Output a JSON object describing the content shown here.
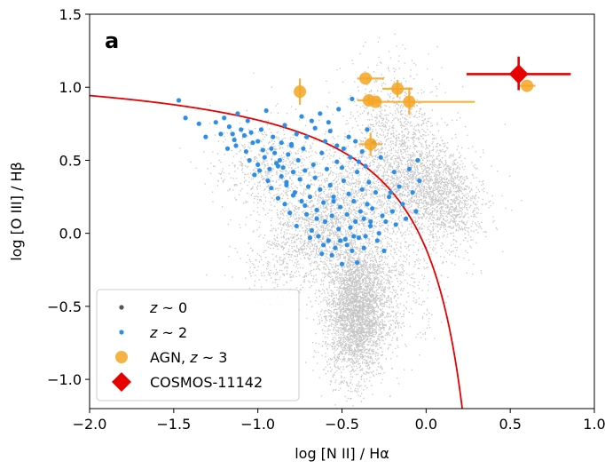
{
  "chart_data": {
    "type": "scatter",
    "panel_label": "a",
    "xlabel": "log [N II] / Hα",
    "ylabel": "log [O III] / Hβ",
    "xlim": [
      -2.0,
      1.0
    ],
    "ylim": [
      -1.2,
      1.5
    ],
    "xticks": [
      "−2.0",
      "−1.5",
      "−1.0",
      "−0.5",
      "0.0",
      "0.5",
      "1.0"
    ],
    "xtick_values": [
      -2.0,
      -1.5,
      -1.0,
      -0.5,
      0.0,
      0.5,
      1.0
    ],
    "yticks": [
      "−1.0",
      "−0.5",
      "0.0",
      "0.5",
      "1.0",
      "1.5"
    ],
    "ytick_values": [
      -1.0,
      -0.5,
      0.0,
      0.5,
      1.0,
      1.5
    ],
    "legend_position": "lower-left",
    "legend": [
      {
        "label": "z ~ 0",
        "italic_prefix": "z",
        "suffix": " ~ 0",
        "marker": "small-dot",
        "color": "#555555"
      },
      {
        "label": "z ~ 2",
        "italic_prefix": "z",
        "suffix": " ~ 2",
        "marker": "dot",
        "color": "#2b8fe8"
      },
      {
        "label": "AGN, z ~ 3",
        "prefix": "AGN, ",
        "italic_prefix": "z",
        "suffix": " ~ 3",
        "marker": "circle",
        "color": "#f5a623"
      },
      {
        "label": "COSMOS-11142",
        "marker": "diamond",
        "color": "#e60000"
      }
    ],
    "demarcation_curve": {
      "formula": "0.61/(x-0.47)+1.19",
      "color": "#e60000"
    },
    "series": [
      {
        "name": "z ~ 0",
        "color": "#333333",
        "description_of_density": "dense gray 2D histogram of local galaxies",
        "clouds": [
          {
            "x": -0.42,
            "y": -0.55,
            "sx": 0.09,
            "sy": 0.22,
            "n": 3200,
            "rot": 0.0
          },
          {
            "x": -0.62,
            "y": 0.05,
            "sx": 0.14,
            "sy": 0.26,
            "n": 1800,
            "rot": -0.7
          },
          {
            "x": -0.9,
            "y": 0.45,
            "sx": 0.18,
            "sy": 0.16,
            "n": 700,
            "rot": -0.5
          },
          {
            "x": -0.1,
            "y": 0.35,
            "sx": 0.17,
            "sy": 0.22,
            "n": 1600,
            "rot": 0.6
          },
          {
            "x": 0.1,
            "y": 0.25,
            "sx": 0.1,
            "sy": 0.18,
            "n": 900,
            "rot": 0.3
          },
          {
            "x": -0.2,
            "y": 0.8,
            "sx": 0.15,
            "sy": 0.2,
            "n": 500,
            "rot": 0.2
          },
          {
            "x": -0.3,
            "y": -0.3,
            "sx": 0.15,
            "sy": 0.2,
            "n": 800,
            "rot": 0.4
          }
        ]
      },
      {
        "name": "z ~ 2",
        "color": "#2b8fe8",
        "x": [
          -1.47,
          -1.43,
          -1.35,
          -1.31,
          -1.25,
          -1.22,
          -1.2,
          -1.17,
          -1.14,
          -1.13,
          -1.1,
          -1.08,
          -1.07,
          -1.05,
          -1.03,
          -1.02,
          -1.0,
          -0.99,
          -0.97,
          -0.96,
          -0.94,
          -0.93,
          -0.92,
          -0.9,
          -0.89,
          -0.88,
          -0.87,
          -0.86,
          -0.85,
          -0.84,
          -0.83,
          -0.82,
          -0.81,
          -0.8,
          -0.79,
          -0.78,
          -0.77,
          -0.76,
          -0.75,
          -0.74,
          -0.73,
          -0.72,
          -0.71,
          -0.7,
          -0.69,
          -0.68,
          -0.67,
          -0.66,
          -0.65,
          -0.64,
          -0.63,
          -0.62,
          -0.61,
          -0.6,
          -0.59,
          -0.58,
          -0.57,
          -0.56,
          -0.55,
          -0.54,
          -0.53,
          -0.52,
          -0.51,
          -0.5,
          -0.49,
          -0.48,
          -0.47,
          -0.46,
          -0.45,
          -0.44,
          -0.43,
          -0.42,
          -0.41,
          -0.4,
          -0.39,
          -0.38,
          -0.37,
          -0.36,
          -0.35,
          -0.34,
          -0.33,
          -0.32,
          -0.3,
          -0.28,
          -0.26,
          -0.24,
          -0.22,
          -0.2,
          -0.19,
          -0.18,
          -0.16,
          -0.14,
          -0.12,
          -0.1,
          -0.08,
          -0.06,
          -0.05,
          -0.04,
          -1.12,
          -1.06,
          -0.98,
          -0.91,
          -0.95,
          -0.84,
          -0.77,
          -0.71,
          -0.66,
          -0.6,
          -0.57,
          -0.53,
          -0.49,
          -0.46,
          -0.42,
          -0.38,
          -0.35,
          -0.31,
          -0.27,
          -0.44,
          -0.52,
          -0.58,
          -0.63,
          -0.68,
          -0.74,
          -0.8,
          -0.86,
          -0.92,
          -1.0,
          -1.04,
          -1.15,
          -1.18,
          -0.72,
          -0.65,
          -0.55,
          -0.5,
          -0.45,
          -0.4,
          -0.36,
          -0.33,
          -0.29,
          -0.25,
          -0.21,
          -0.62,
          -0.79,
          -0.83,
          -0.88,
          -0.69,
          -0.61,
          -0.56,
          -0.51,
          -0.47,
          -0.43,
          -0.41,
          -0.37
        ],
        "y": [
          0.91,
          0.79,
          0.75,
          0.66,
          0.76,
          0.68,
          0.79,
          0.73,
          0.64,
          0.6,
          0.71,
          0.67,
          0.56,
          0.5,
          0.62,
          0.4,
          0.47,
          0.43,
          0.57,
          0.52,
          0.36,
          0.44,
          0.31,
          0.55,
          0.48,
          0.24,
          0.5,
          0.39,
          0.45,
          0.2,
          0.33,
          0.54,
          0.14,
          0.61,
          0.42,
          0.28,
          0.05,
          0.5,
          0.37,
          0.22,
          0.58,
          0.43,
          0.13,
          0.32,
          0.25,
          0.02,
          0.47,
          0.38,
          0.16,
          -0.02,
          0.3,
          0.55,
          0.21,
          0.08,
          0.44,
          -0.05,
          0.33,
          0.12,
          0.25,
          -0.1,
          0.49,
          0.03,
          0.18,
          -0.21,
          0.36,
          -0.04,
          0.13,
          0.27,
          0.04,
          -0.12,
          0.22,
          0.08,
          0.42,
          -0.03,
          0.15,
          0.3,
          0.1,
          -0.02,
          0.2,
          0.35,
          0.05,
          0.17,
          0.28,
          0.0,
          0.12,
          0.08,
          0.25,
          0.15,
          0.42,
          0.06,
          0.32,
          0.2,
          0.1,
          0.44,
          0.28,
          0.15,
          0.5,
          0.36,
          0.82,
          0.77,
          0.71,
          0.66,
          0.84,
          0.74,
          0.68,
          0.66,
          0.72,
          0.63,
          0.7,
          0.6,
          0.58,
          0.66,
          0.63,
          0.56,
          0.71,
          0.62,
          0.52,
          0.92,
          0.85,
          0.76,
          0.82,
          0.77,
          0.8,
          0.6,
          0.62,
          0.58,
          0.63,
          0.69,
          0.68,
          0.58,
          0.19,
          0.1,
          0.22,
          0.45,
          0.52,
          0.49,
          0.46,
          0.08,
          -0.05,
          -0.12,
          0.28,
          -0.14,
          0.26,
          0.35,
          0.46,
          -0.03,
          -0.08,
          -0.15,
          -0.05,
          -0.08,
          -0.02,
          -0.2,
          -0.1
        ]
      },
      {
        "name": "AGN, z ~ 3",
        "color": "#f5a623",
        "points": [
          {
            "x": -0.75,
            "y": 0.97,
            "xerr": [
              0.0,
              0.0
            ],
            "yerr": [
              0.09,
              0.09
            ]
          },
          {
            "x": -0.36,
            "y": 1.06,
            "xerr": [
              0.05,
              0.11
            ],
            "yerr": [
              0.0,
              0.0
            ]
          },
          {
            "x": -0.34,
            "y": 0.91,
            "xerr": [
              0.07,
              0.07
            ],
            "yerr": [
              0.03,
              0.03
            ]
          },
          {
            "x": -0.3,
            "y": 0.9,
            "xerr": [
              0.0,
              0.0
            ],
            "yerr": [
              0.0,
              0.0
            ]
          },
          {
            "x": -0.17,
            "y": 0.99,
            "xerr": [
              0.09,
              0.09
            ],
            "yerr": [
              0.06,
              0.06
            ]
          },
          {
            "x": -0.1,
            "y": 0.9,
            "xerr": [
              0.2,
              0.39
            ],
            "yerr": [
              0.09,
              0.1
            ]
          },
          {
            "x": -0.33,
            "y": 0.61,
            "xerr": [
              0.07,
              0.07
            ],
            "yerr": [
              0.08,
              0.08
            ]
          },
          {
            "x": 0.6,
            "y": 1.01,
            "xerr": [
              0.05,
              0.05
            ],
            "yerr": [
              0.0,
              0.0
            ]
          }
        ]
      },
      {
        "name": "COSMOS-11142",
        "color": "#e60000",
        "points": [
          {
            "x": 0.55,
            "y": 1.09,
            "xerr": [
              0.31,
              0.31
            ],
            "yerr": [
              0.11,
              0.12
            ]
          }
        ]
      }
    ]
  }
}
